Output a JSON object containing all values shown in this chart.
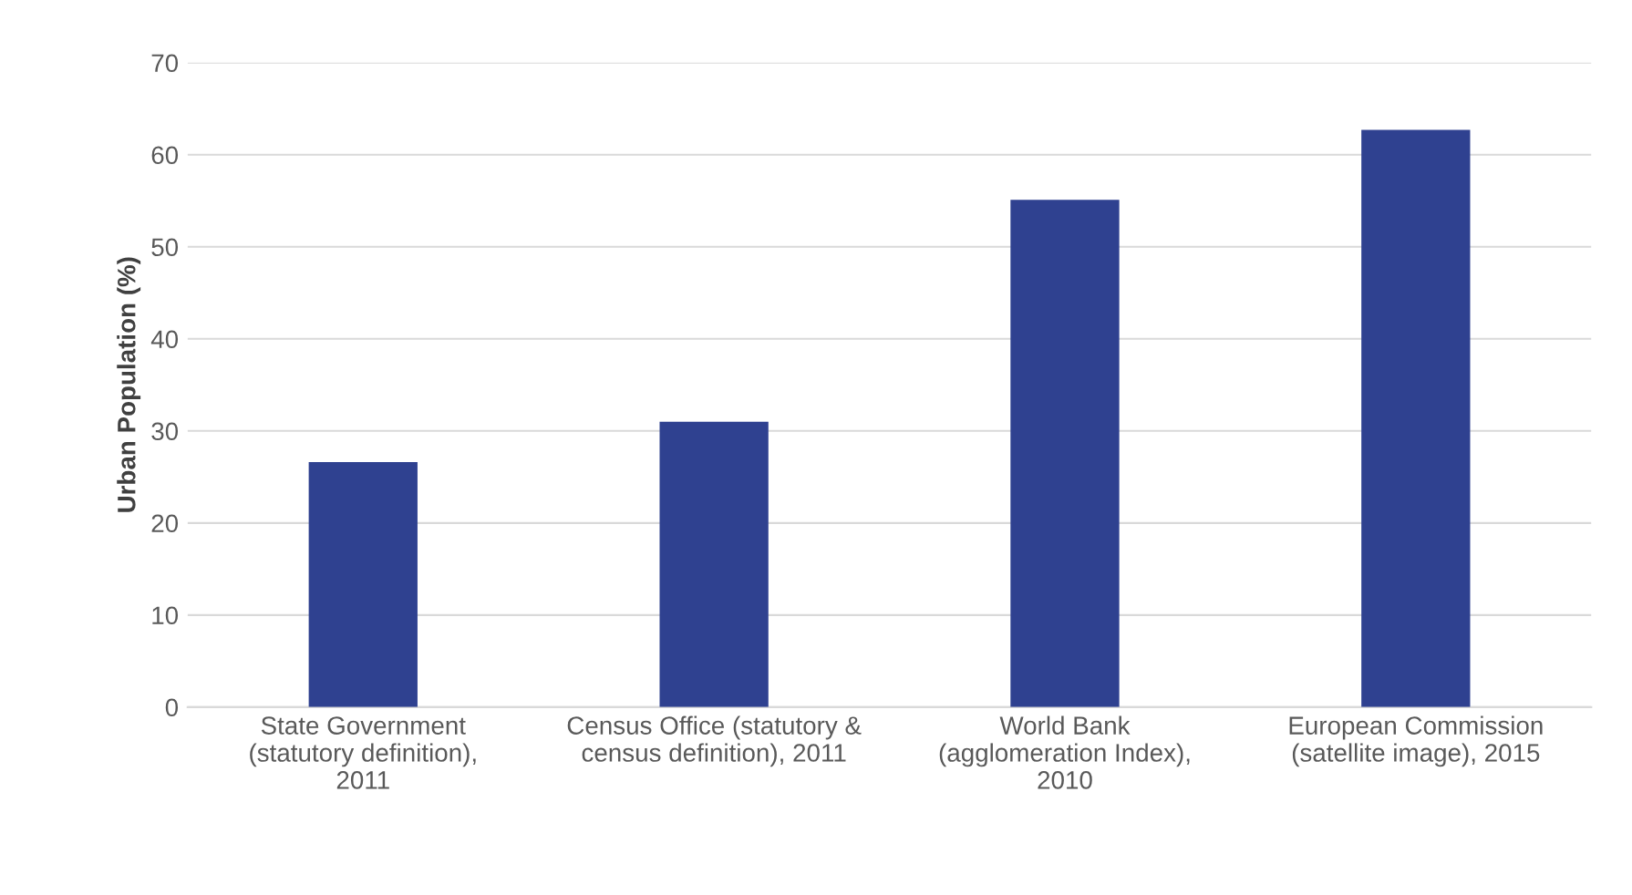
{
  "chart_data": {
    "type": "bar",
    "ylabel": "Urban Population (%)",
    "categories": [
      "State Government\n(statutory definition),\n2011",
      "Census Office (statutory &\ncensus definition), 2011",
      "World Bank\n(agglomeration Index),\n2010",
      "European Commission\n(satellite image), 2015"
    ],
    "values": [
      26.6,
      31.0,
      55.1,
      62.7
    ],
    "colors": [
      "#2f4190",
      "#2f4190",
      "#2f4190",
      "#2f4190"
    ],
    "ylim": [
      0,
      70
    ],
    "yticks": [
      0,
      10,
      20,
      30,
      40,
      50,
      60,
      70
    ],
    "grid": "y",
    "legend": false
  }
}
